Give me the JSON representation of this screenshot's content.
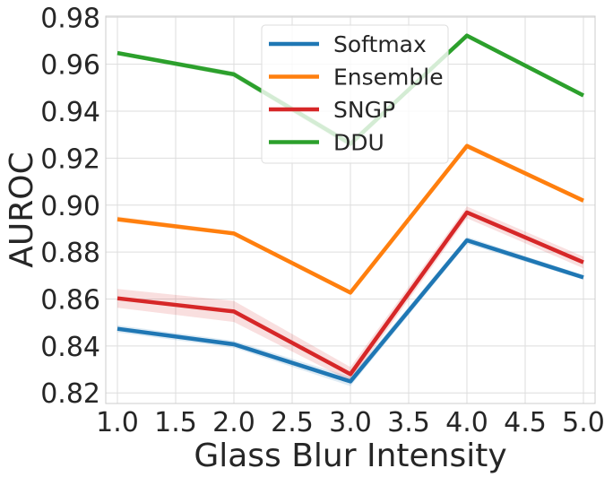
{
  "chart_data": {
    "type": "line",
    "x": [
      1.0,
      2.0,
      3.0,
      4.0,
      5.0
    ],
    "xlabel": "Glass Blur Intensity",
    "ylabel": "AUROC",
    "xlim": [
      0.9,
      5.1
    ],
    "ylim": [
      0.8155,
      0.9805
    ],
    "x_ticks": [
      "1.0",
      "1.5",
      "2.0",
      "2.5",
      "3.0",
      "3.5",
      "4.0",
      "4.5",
      "5.0"
    ],
    "y_ticks": [
      "0.82",
      "0.84",
      "0.86",
      "0.88",
      "0.90",
      "0.92",
      "0.94",
      "0.96",
      "0.98"
    ],
    "grid": true,
    "legend_position": "top-center",
    "series": [
      {
        "name": "Softmax",
        "color": "#1f77b4",
        "values": [
          0.8473,
          0.8407,
          0.8249,
          0.885,
          0.8692
        ],
        "band": [
          0.0015,
          0.0015,
          0.002,
          0.0015,
          0.001
        ]
      },
      {
        "name": "Ensemble",
        "color": "#ff7f0e",
        "values": [
          0.894,
          0.8879,
          0.8627,
          0.9252,
          0.9019
        ],
        "band": [
          0.0012,
          0.0008,
          0.0008,
          0.0012,
          0.0008
        ]
      },
      {
        "name": "SNGP",
        "color": "#d62728",
        "values": [
          0.8603,
          0.8547,
          0.828,
          0.8969,
          0.8756
        ],
        "band": [
          0.004,
          0.0045,
          0.003,
          0.0025,
          0.0025
        ]
      },
      {
        "name": "DDU",
        "color": "#2ca02c",
        "values": [
          0.9648,
          0.9557,
          0.9261,
          0.9722,
          0.9467
        ],
        "band": [
          0.0008,
          0.0012,
          0.0015,
          0.0008,
          0.0006
        ]
      }
    ]
  }
}
